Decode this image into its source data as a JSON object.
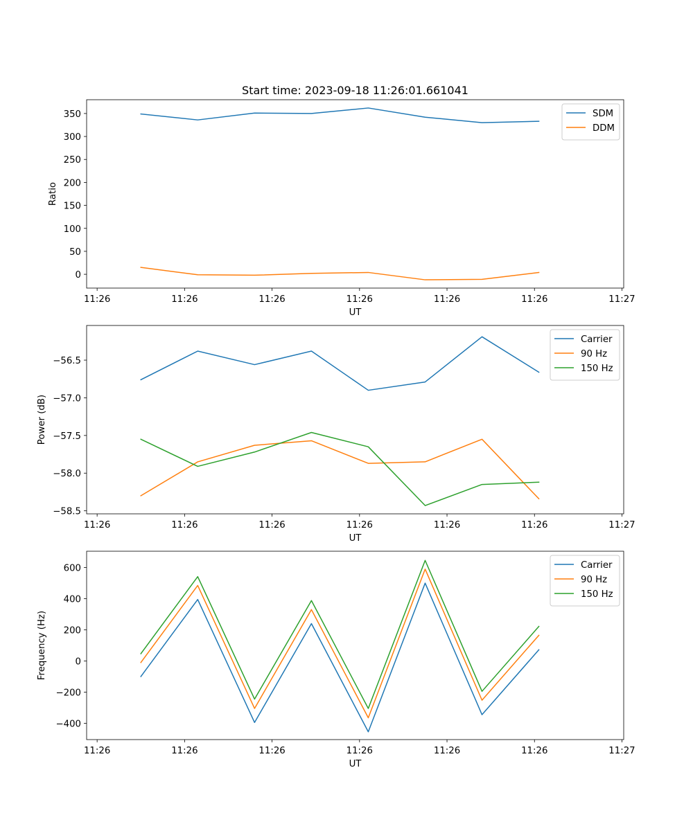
{
  "figure_title": "Start time: 2023-09-18 11:26:01.661041",
  "chart_data": [
    {
      "type": "line",
      "title": "Start time: 2023-09-18 11:26:01.661041",
      "xlabel": "UT",
      "ylabel": "Ratio",
      "x_tick_labels": [
        "11:26",
        "11:26",
        "11:26",
        "11:26",
        "11:26",
        "11:26",
        "11:27"
      ],
      "x_tick_positions": [
        0,
        1,
        2,
        3,
        4,
        5,
        6
      ],
      "x": [
        0.5,
        1.15,
        1.8,
        2.45,
        3.1,
        3.75,
        4.4,
        5.05
      ],
      "xlim": [
        -0.12,
        6.02
      ],
      "ylim": [
        -30,
        380
      ],
      "y_ticks": [
        0,
        50,
        100,
        150,
        200,
        250,
        300,
        350
      ],
      "legend": "top-right",
      "series": [
        {
          "name": "SDM",
          "color": "#1f77b4",
          "values": [
            349,
            336,
            351,
            350,
            362,
            342,
            330,
            333
          ]
        },
        {
          "name": "DDM",
          "color": "#ff7f0e",
          "values": [
            15,
            -1,
            -2,
            2,
            4,
            -12,
            -11,
            4
          ]
        }
      ]
    },
    {
      "type": "line",
      "title": "",
      "xlabel": "UT",
      "ylabel": "Power (dB)",
      "x_tick_labels": [
        "11:26",
        "11:26",
        "11:26",
        "11:26",
        "11:26",
        "11:26",
        "11:27"
      ],
      "x_tick_positions": [
        0,
        1,
        2,
        3,
        4,
        5,
        6
      ],
      "x": [
        0.5,
        1.15,
        1.8,
        2.45,
        3.1,
        3.75,
        4.4,
        5.05
      ],
      "xlim": [
        -0.12,
        6.02
      ],
      "ylim": [
        -58.54,
        -56.04
      ],
      "y_ticks": [
        -58.5,
        -58.0,
        -57.5,
        -57.0,
        -56.5
      ],
      "y_tick_labels": [
        "−58.5",
        "−58.0",
        "−57.5",
        "−57.0",
        "−56.5"
      ],
      "legend": "top-right",
      "series": [
        {
          "name": "Carrier",
          "color": "#1f77b4",
          "values": [
            -56.76,
            -56.38,
            -56.56,
            -56.38,
            -56.9,
            -56.79,
            -56.19,
            -56.66
          ]
        },
        {
          "name": "90 Hz",
          "color": "#ff7f0e",
          "values": [
            -58.3,
            -57.85,
            -57.63,
            -57.57,
            -57.87,
            -57.85,
            -57.55,
            -58.34
          ]
        },
        {
          "name": "150 Hz",
          "color": "#2ca02c",
          "values": [
            -57.55,
            -57.91,
            -57.72,
            -57.46,
            -57.65,
            -58.43,
            -58.15,
            -58.12
          ]
        }
      ]
    },
    {
      "type": "line",
      "title": "",
      "xlabel": "UT",
      "ylabel": "Frequency (Hz)",
      "x_tick_labels": [
        "11:26",
        "11:26",
        "11:26",
        "11:26",
        "11:26",
        "11:26",
        "11:27"
      ],
      "x_tick_positions": [
        0,
        1,
        2,
        3,
        4,
        5,
        6
      ],
      "x": [
        0.5,
        1.15,
        1.8,
        2.45,
        3.1,
        3.75,
        4.4,
        5.05
      ],
      "xlim": [
        -0.12,
        6.02
      ],
      "ylim": [
        -505,
        705
      ],
      "y_ticks": [
        -400,
        -200,
        0,
        200,
        400,
        600
      ],
      "y_tick_labels": [
        "−400",
        "−200",
        "0",
        "200",
        "400",
        "600"
      ],
      "legend": "top-right",
      "series": [
        {
          "name": "Carrier",
          "color": "#1f77b4",
          "values": [
            -100,
            395,
            -395,
            240,
            -455,
            500,
            -345,
            72
          ]
        },
        {
          "name": "90 Hz",
          "color": "#ff7f0e",
          "values": [
            -10,
            485,
            -305,
            330,
            -365,
            590,
            -252,
            165
          ]
        },
        {
          "name": "150 Hz",
          "color": "#2ca02c",
          "values": [
            47,
            542,
            -245,
            388,
            -305,
            646,
            -195,
            222
          ]
        }
      ]
    }
  ]
}
